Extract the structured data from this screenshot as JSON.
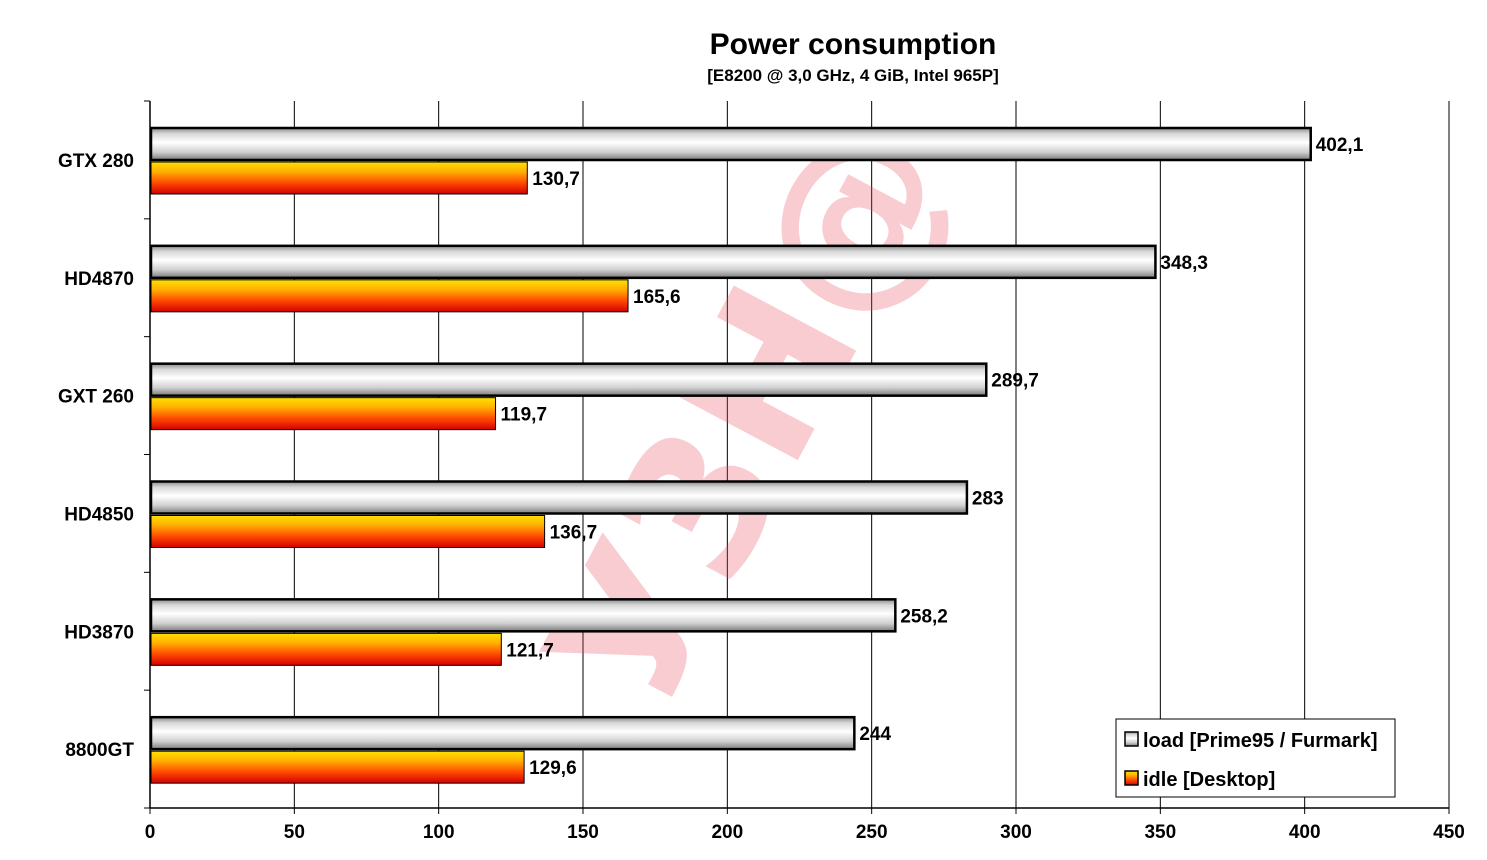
{
  "chart_data": {
    "type": "bar",
    "orientation": "horizontal",
    "title": "Power consumption",
    "subtitle": "[E8200 @ 3,0 GHz, 4 GiB, Intel 965P]",
    "categories": [
      "GTX 280",
      "HD4870",
      "GXT 260",
      "HD4850",
      "HD3870",
      "8800GT"
    ],
    "series": [
      {
        "name": "load [Prime95 / Furmark]",
        "values": [
          402.1,
          348.3,
          289.7,
          283,
          258.2,
          244
        ],
        "labels": [
          "402,1",
          "348,3",
          "289,7",
          "283",
          "258,2",
          "244"
        ],
        "color": "#c0c0c0"
      },
      {
        "name": "idle [Desktop]",
        "values": [
          130.7,
          165.6,
          119.7,
          136.7,
          121.7,
          129.6
        ],
        "labels": [
          "130,7",
          "165,6",
          "119,7",
          "136,7",
          "121,7",
          "129,6"
        ],
        "color": "#ff6600"
      }
    ],
    "xlim": [
      0,
      450
    ],
    "xticks": [
      0,
      50,
      100,
      150,
      200,
      250,
      300,
      350,
      400,
      450
    ],
    "grid": true,
    "legend_position": "bottom-right",
    "watermark": "У3H@"
  }
}
